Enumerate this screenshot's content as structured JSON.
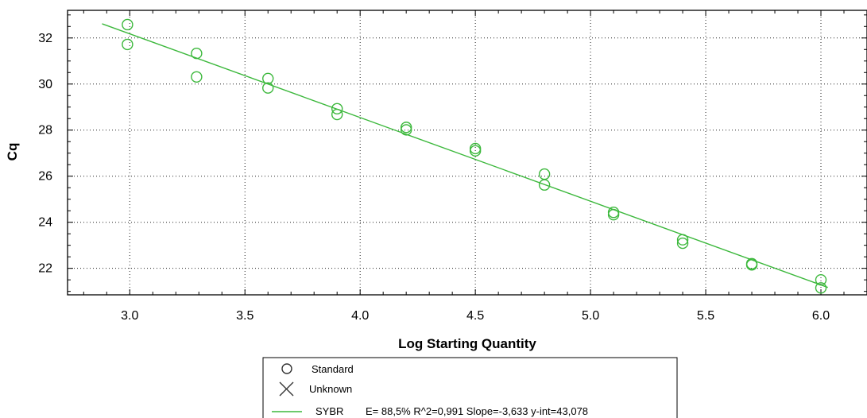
{
  "chart_data": {
    "type": "scatter",
    "title": "",
    "xlabel": "Log Starting Quantity",
    "ylabel": "Cq",
    "xlim": [
      2.73,
      6.2
    ],
    "ylim": [
      20.85,
      33.2
    ],
    "x_ticks": [
      3.0,
      3.5,
      4.0,
      4.5,
      5.0,
      5.5,
      6.0
    ],
    "x_tick_labels": [
      "3.0",
      "3.5",
      "4.0",
      "4.5",
      "5.0",
      "5.5",
      "6.0"
    ],
    "y_ticks": [
      22,
      24,
      26,
      28,
      30,
      32
    ],
    "y_tick_labels": [
      "22",
      "24",
      "26",
      "28",
      "30",
      "32"
    ],
    "grid": true,
    "legend_position": "bottom-center",
    "series": [
      {
        "name": "Standard",
        "marker": "circle",
        "color": "#3cb83c",
        "points": [
          {
            "x": 2.99,
            "y": 32.58
          },
          {
            "x": 2.99,
            "y": 31.72
          },
          {
            "x": 3.29,
            "y": 31.33
          },
          {
            "x": 3.29,
            "y": 30.31
          },
          {
            "x": 3.6,
            "y": 30.24
          },
          {
            "x": 3.6,
            "y": 29.83
          },
          {
            "x": 3.9,
            "y": 28.93
          },
          {
            "x": 3.9,
            "y": 28.68
          },
          {
            "x": 4.2,
            "y": 28.12
          },
          {
            "x": 4.2,
            "y": 28.01
          },
          {
            "x": 4.5,
            "y": 27.2
          },
          {
            "x": 4.5,
            "y": 27.1
          },
          {
            "x": 4.8,
            "y": 26.09
          },
          {
            "x": 4.8,
            "y": 25.62
          },
          {
            "x": 5.1,
            "y": 24.43
          },
          {
            "x": 5.1,
            "y": 24.33
          },
          {
            "x": 5.4,
            "y": 23.24
          },
          {
            "x": 5.4,
            "y": 23.09
          },
          {
            "x": 5.7,
            "y": 22.2
          },
          {
            "x": 5.7,
            "y": 22.15
          },
          {
            "x": 6.0,
            "y": 21.5
          },
          {
            "x": 6.0,
            "y": 21.15
          }
        ]
      }
    ],
    "fit_line": {
      "name": "SYBR",
      "color": "#3cb83c",
      "slope": -3.633,
      "intercept": 43.078,
      "x_range": [
        2.88,
        6.03
      ]
    },
    "legend": [
      {
        "symbol": "circle",
        "label": "Standard"
      },
      {
        "symbol": "cross",
        "label": "Unknown"
      },
      {
        "symbol": "line",
        "label": "SYBR",
        "stats": "E= 88,5% R^2=0,991 Slope=-3,633 y-int=43,078"
      }
    ]
  }
}
